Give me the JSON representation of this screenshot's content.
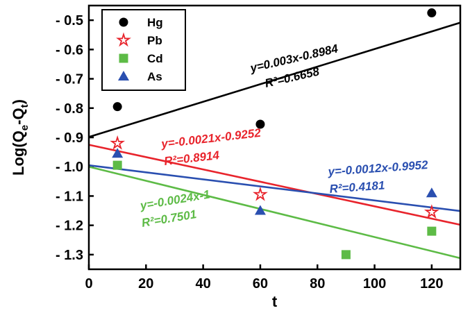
{
  "chart_data": {
    "type": "scatter",
    "title": "",
    "xlabel": "t",
    "ylabel": "Log(Qe-Qt)",
    "ylabel_parts": {
      "base": "Log(Q",
      "sub1": "e",
      "mid": "-Q",
      "sub2": "t",
      "end": ")"
    },
    "xlim": [
      0,
      130
    ],
    "ylim": [
      -1.35,
      -0.45
    ],
    "x_ticks": [
      0,
      20,
      40,
      60,
      80,
      100,
      120
    ],
    "x_tick_labels": [
      "0",
      "20",
      "40",
      "60",
      "80",
      "100",
      "120"
    ],
    "y_ticks": [
      -0.5,
      -0.6,
      -0.7,
      -0.8,
      -0.9,
      -1.0,
      -1.1,
      -1.2,
      -1.3
    ],
    "y_tick_labels": [
      "- 0.5",
      "- 0.6",
      "- 0.7",
      "- 0.8",
      "- 0.9",
      "- 1.0",
      "- 1.1",
      "- 1.2",
      "- 1.3"
    ],
    "legend_position": "top-left",
    "series": [
      {
        "name": "Hg",
        "marker": "circle",
        "color": "#000000",
        "points": [
          [
            10,
            -0.795
          ],
          [
            60,
            -0.855
          ],
          [
            120,
            -0.475
          ]
        ],
        "fit": {
          "slope": 0.003,
          "intercept": -0.8984,
          "eq": "y=0.003x-0.8984",
          "r2": "R²=0.6658"
        }
      },
      {
        "name": "Pb",
        "marker": "star",
        "color": "#e8242c",
        "points": [
          [
            10,
            -0.92
          ],
          [
            60,
            -1.095
          ],
          [
            120,
            -1.155
          ]
        ],
        "fit": {
          "slope": -0.0021,
          "intercept": -0.9252,
          "eq": "y=-0.0021x-0.9252",
          "r2": "R²=0.8914"
        }
      },
      {
        "name": "Cd",
        "marker": "square",
        "color": "#5dbb46",
        "points": [
          [
            10,
            -0.995
          ],
          [
            90,
            -1.3
          ],
          [
            120,
            -1.22
          ]
        ],
        "fit": {
          "slope": -0.0024,
          "intercept": -1.0,
          "eq": "y=-0.0024x-1",
          "r2": "R²=0.7501"
        }
      },
      {
        "name": "As",
        "marker": "triangle",
        "color": "#2a4fb0",
        "points": [
          [
            10,
            -0.955
          ],
          [
            60,
            -1.15
          ],
          [
            120,
            -1.09
          ]
        ],
        "fit": {
          "slope": -0.0012,
          "intercept": -0.9952,
          "eq": "y=-0.0012x-0.9952",
          "r2": "R²=0.4181"
        }
      }
    ]
  }
}
